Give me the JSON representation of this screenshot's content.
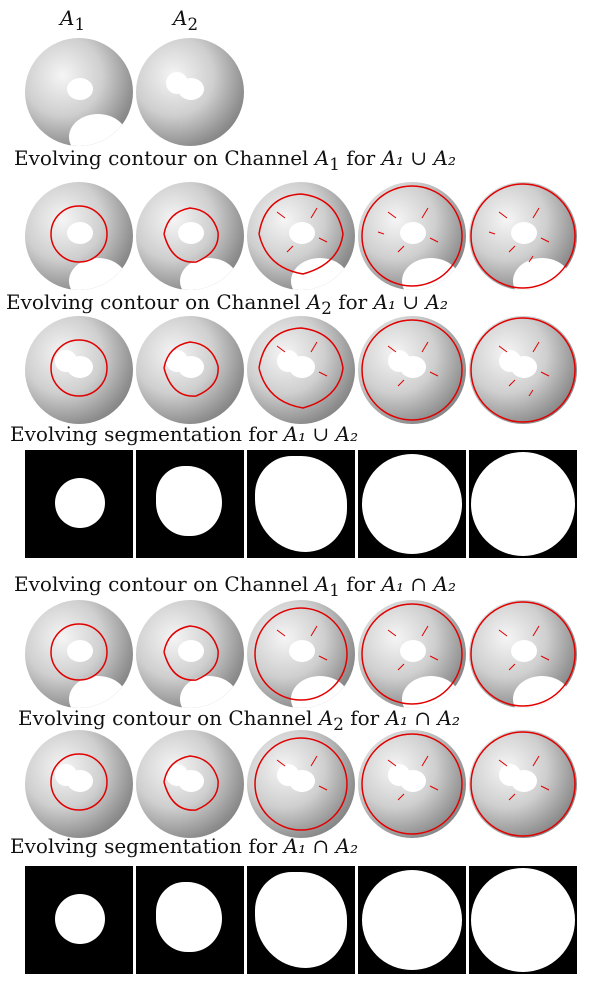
{
  "top_labels": {
    "a1": "A",
    "a1_sub": "1",
    "a2": "A",
    "a2_sub": "2"
  },
  "sections": [
    {
      "id": "s1",
      "text": "Evolving contour on Channel",
      "var": "A",
      "sub": "1",
      "for": "for",
      "op": "A₁ ∪ A₂"
    },
    {
      "id": "s2",
      "text": "Evolving contour on Channel",
      "var": "A",
      "sub": "2",
      "for": "for",
      "op": "A₁ ∪ A₂"
    },
    {
      "id": "s3",
      "text": "Evolving segmentation for",
      "op": "A₁ ∪ A₂"
    },
    {
      "id": "s4",
      "text": "Evolving contour on Channel",
      "var": "A",
      "sub": "1",
      "for": "for",
      "op": "A₁ ∩ A₂"
    },
    {
      "id": "s5",
      "text": "Evolving contour on Channel",
      "var": "A",
      "sub": "2",
      "for": "for",
      "op": "A₁ ∩ A₂"
    },
    {
      "id": "s6",
      "text": "Evolving segmentation for",
      "op": "A₁ ∩ A₂"
    }
  ],
  "colors": {
    "contour": "#e00000",
    "background": "#ffffff",
    "mask_bg": "#000000",
    "mask_fg": "#ffffff"
  }
}
